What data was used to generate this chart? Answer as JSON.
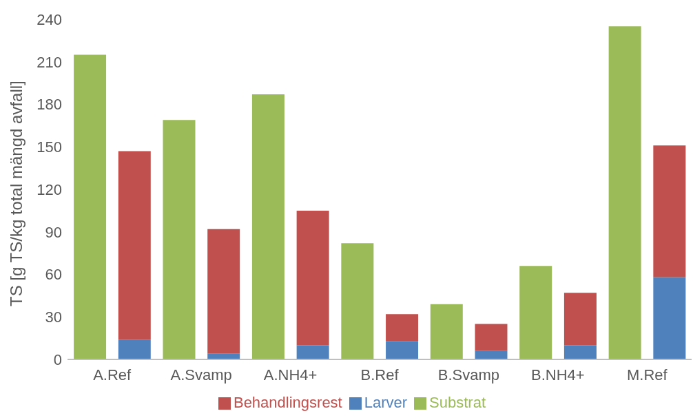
{
  "chart_data": {
    "type": "bar",
    "ylabel": "TS [g TS/kg total mängd avfall]",
    "categories": [
      "A.Ref",
      null,
      "A.Svamp",
      null,
      "A.NH4+",
      null,
      "B.Ref",
      null,
      "B.Svamp",
      null,
      "B.NH4+",
      null,
      "M.Ref",
      null
    ],
    "series": [
      {
        "name": "Larver",
        "color": "#4f81bd",
        "values": [
          null,
          14,
          null,
          4,
          null,
          10,
          null,
          13,
          null,
          6,
          null,
          10,
          null,
          58
        ]
      },
      {
        "name": "Behandlingsrest",
        "color": "#c0504d",
        "values": [
          null,
          133,
          null,
          88,
          null,
          95,
          null,
          19,
          null,
          19,
          null,
          37,
          null,
          93
        ]
      },
      {
        "name": "Substrat",
        "color": "#9bbb59",
        "values": [
          215,
          null,
          169,
          null,
          187,
          null,
          82,
          null,
          39,
          null,
          66,
          null,
          235,
          null
        ]
      }
    ],
    "stacked": true,
    "ylim": [
      0,
      240
    ],
    "yticks": [
      0,
      30,
      60,
      90,
      120,
      150,
      180,
      210,
      240
    ],
    "grid": false,
    "legend": "bottom"
  }
}
